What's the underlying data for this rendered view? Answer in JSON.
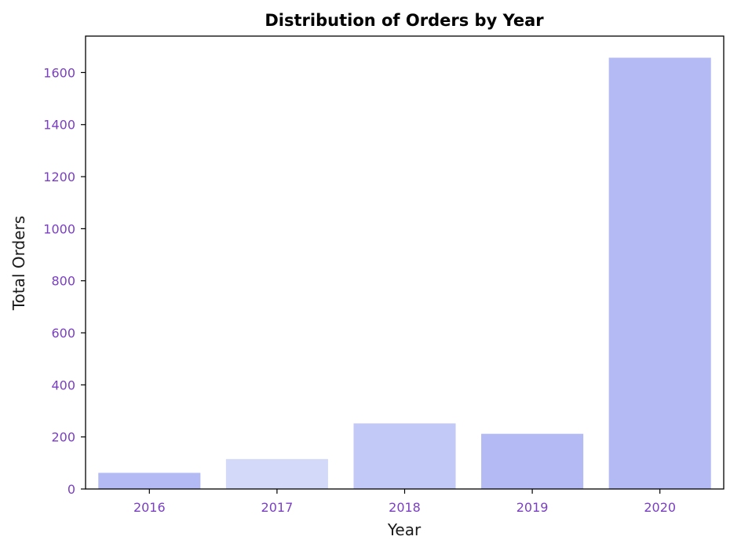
{
  "chart_data": {
    "type": "bar",
    "title": "Distribution of Orders by Year",
    "xlabel": "Year",
    "ylabel": "Total Orders",
    "categories": [
      "2016",
      "2017",
      "2018",
      "2019",
      "2020"
    ],
    "values": [
      62,
      115,
      252,
      212,
      1657
    ],
    "ylim": [
      0,
      1740
    ],
    "yticks": [
      "0",
      "200",
      "400",
      "600",
      "800",
      "1000",
      "1200",
      "1400",
      "1600"
    ],
    "grid": false,
    "legend": "none",
    "colors": {
      "bars": [
        "#b3baf4",
        "#d3d9f9",
        "#c3c9f7",
        "#b3baf4",
        "#b3baf4"
      ],
      "tick_labels": "#7b3fc4",
      "axes": "#000000"
    }
  }
}
